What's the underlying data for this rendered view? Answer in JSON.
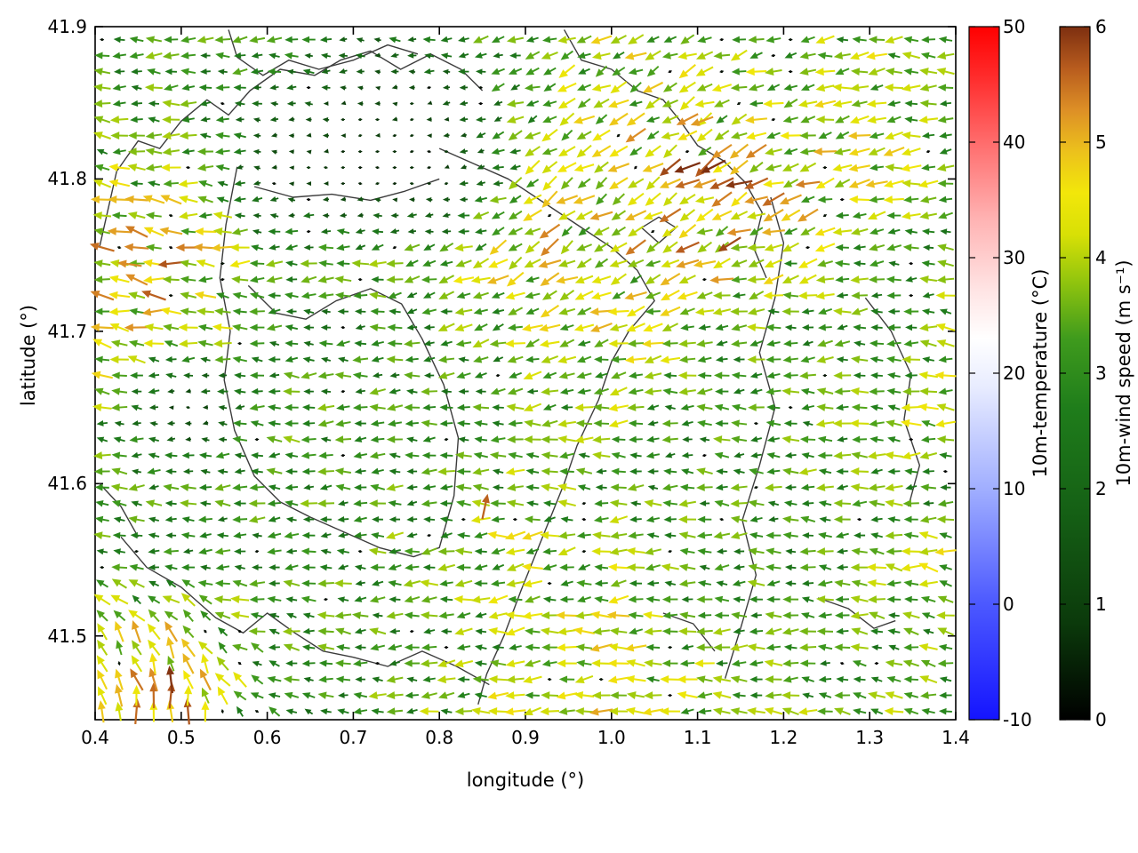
{
  "window": {
    "background": "#ffffff"
  },
  "chart_data": {
    "type": "quiver",
    "title": "",
    "xlabel": "longitude (°)",
    "ylabel": "latitude (°)",
    "xlim": [
      0.4,
      1.4
    ],
    "ylim": [
      41.445,
      41.9
    ],
    "xticks": [
      0.4,
      0.5,
      0.6,
      0.7,
      0.8,
      0.9,
      1.0,
      1.1,
      1.2,
      1.3,
      1.4
    ],
    "yticks": [
      41.5,
      41.6,
      41.7,
      41.8,
      41.9
    ],
    "grid": "off",
    "legend": "none",
    "field": {
      "comment": "10m wind vector field; speed (m/s) and direction (deg CCW from east, 180=westward) sampled on coarse grid, arrows drawn at fine spacing with jitter",
      "lon_nodes": [
        0.4,
        0.5,
        0.6,
        0.7,
        0.8,
        0.9,
        1.0,
        1.1,
        1.2,
        1.3,
        1.4
      ],
      "lat_nodes": [
        41.9,
        41.85,
        41.8,
        41.75,
        41.7,
        41.65,
        41.6,
        41.55,
        41.5,
        41.45
      ],
      "speed_grid": [
        [
          3.0,
          3.2,
          3.0,
          2.0,
          2.8,
          3.2,
          3.8,
          3.5,
          3.2,
          3.6,
          3.2
        ],
        [
          3.2,
          3.0,
          2.2,
          1.0,
          1.2,
          3.2,
          4.0,
          4.0,
          3.6,
          4.0,
          3.4
        ],
        [
          3.6,
          3.8,
          1.2,
          0.4,
          0.5,
          3.8,
          4.4,
          5.0,
          4.4,
          4.0,
          3.4
        ],
        [
          4.6,
          5.0,
          3.0,
          3.0,
          3.6,
          4.4,
          4.2,
          4.6,
          4.0,
          3.4,
          3.0
        ],
        [
          4.4,
          4.0,
          2.8,
          2.6,
          3.0,
          3.6,
          4.0,
          3.6,
          3.0,
          3.0,
          3.6
        ],
        [
          3.6,
          0.6,
          3.0,
          3.0,
          3.0,
          3.2,
          3.6,
          3.0,
          3.0,
          3.4,
          4.0
        ],
        [
          3.0,
          3.0,
          3.0,
          3.0,
          3.0,
          3.4,
          3.0,
          3.0,
          3.0,
          3.4,
          3.0
        ],
        [
          3.0,
          2.6,
          3.0,
          3.0,
          3.4,
          4.0,
          3.6,
          3.0,
          3.0,
          3.4,
          4.0
        ],
        [
          4.0,
          4.4,
          3.0,
          3.0,
          3.0,
          3.6,
          4.0,
          3.4,
          3.0,
          3.0,
          3.4
        ],
        [
          5.0,
          5.4,
          2.6,
          3.0,
          3.4,
          4.0,
          4.0,
          3.6,
          3.4,
          3.4,
          3.0
        ]
      ],
      "dir_grid": [
        [
          180,
          182,
          185,
          180,
          178,
          195,
          205,
          198,
          188,
          182,
          178
        ],
        [
          176,
          180,
          180,
          180,
          182,
          202,
          212,
          206,
          196,
          186,
          180
        ],
        [
          170,
          176,
          180,
          180,
          186,
          212,
          216,
          212,
          202,
          190,
          184
        ],
        [
          166,
          172,
          180,
          186,
          196,
          214,
          210,
          206,
          196,
          186,
          180
        ],
        [
          170,
          176,
          180,
          182,
          186,
          200,
          196,
          190,
          186,
          180,
          176
        ],
        [
          174,
          180,
          180,
          180,
          180,
          186,
          186,
          180,
          180,
          176,
          174
        ],
        [
          180,
          180,
          180,
          180,
          180,
          180,
          180,
          180,
          180,
          180,
          180
        ],
        [
          172,
          176,
          180,
          182,
          186,
          190,
          186,
          180,
          180,
          176,
          172
        ],
        [
          125,
          112,
          168,
          180,
          182,
          186,
          182,
          180,
          180,
          176,
          170
        ],
        [
          95,
          90,
          148,
          178,
          182,
          186,
          182,
          180,
          176,
          174,
          170
        ]
      ],
      "arrow_step_lon": 0.02,
      "arrow_step_lat": 0.0105,
      "seed": 42
    },
    "feature_arrows": [
      {
        "lon": 1.118,
        "lat": 41.808,
        "dir": 207,
        "speed": 6.0
      },
      {
        "lon": 1.137,
        "lat": 41.757,
        "dir": 212,
        "speed": 5.8
      },
      {
        "lon": 0.853,
        "lat": 41.585,
        "dir": 78,
        "speed": 5.6
      },
      {
        "lon": 0.44,
        "lat": 41.744,
        "dir": 172,
        "speed": 5.3
      },
      {
        "lon": 1.105,
        "lat": 41.838,
        "dir": 200,
        "speed": 5.2
      }
    ],
    "colorbars": [
      {
        "label": "10m-temperature (°C)",
        "min": -10,
        "max": 50,
        "ticks": [
          -10,
          0,
          10,
          20,
          30,
          40,
          50
        ],
        "stops": [
          {
            "t": 0.0,
            "c": "#1414ff"
          },
          {
            "t": 0.17,
            "c": "#4d5aff"
          },
          {
            "t": 0.33,
            "c": "#9fadff"
          },
          {
            "t": 0.48,
            "c": "#e8ecff"
          },
          {
            "t": 0.55,
            "c": "#ffffff"
          },
          {
            "t": 0.62,
            "c": "#ffe4e4"
          },
          {
            "t": 0.72,
            "c": "#ffb4b4"
          },
          {
            "t": 0.83,
            "c": "#ff6e6e"
          },
          {
            "t": 0.93,
            "c": "#ff2a2a"
          },
          {
            "t": 1.0,
            "c": "#ff0000"
          }
        ]
      },
      {
        "label": "10m-wind speed (m s⁻¹)",
        "min": 0,
        "max": 6,
        "ticks": [
          0,
          1,
          2,
          3,
          4,
          5,
          6
        ],
        "stops": [
          {
            "t": 0.0,
            "c": "#000000"
          },
          {
            "t": 0.14,
            "c": "#0b3a0b"
          },
          {
            "t": 0.3,
            "c": "#156015"
          },
          {
            "t": 0.45,
            "c": "#1f7d1b"
          },
          {
            "t": 0.55,
            "c": "#3f9b1d"
          },
          {
            "t": 0.63,
            "c": "#8fc40e"
          },
          {
            "t": 0.7,
            "c": "#d8e006"
          },
          {
            "t": 0.76,
            "c": "#f2e70a"
          },
          {
            "t": 0.82,
            "c": "#ecc11c"
          },
          {
            "t": 0.88,
            "c": "#dd8f26"
          },
          {
            "t": 0.94,
            "c": "#b85c1e"
          },
          {
            "t": 1.0,
            "c": "#7d2f10"
          }
        ]
      }
    ],
    "contours": [
      [
        [
          0.405,
          41.755
        ],
        [
          0.415,
          41.78
        ],
        [
          0.425,
          41.805
        ],
        [
          0.45,
          41.825
        ],
        [
          0.475,
          41.82
        ],
        [
          0.5,
          41.838
        ],
        [
          0.53,
          41.852
        ],
        [
          0.555,
          41.842
        ],
        [
          0.58,
          41.858
        ],
        [
          0.615,
          41.872
        ],
        [
          0.655,
          41.868
        ],
        [
          0.685,
          41.878
        ],
        [
          0.72,
          41.884
        ],
        [
          0.755,
          41.872
        ],
        [
          0.79,
          41.882
        ],
        [
          0.825,
          41.872
        ],
        [
          0.85,
          41.858
        ]
      ],
      [
        [
          0.555,
          41.898
        ],
        [
          0.565,
          41.88
        ],
        [
          0.595,
          41.868
        ],
        [
          0.625,
          41.878
        ],
        [
          0.66,
          41.872
        ],
        [
          0.7,
          41.878
        ],
        [
          0.74,
          41.888
        ],
        [
          0.775,
          41.882
        ]
      ],
      [
        [
          0.945,
          41.898
        ],
        [
          0.965,
          41.878
        ],
        [
          1.0,
          41.872
        ],
        [
          1.03,
          41.858
        ],
        [
          1.06,
          41.852
        ],
        [
          1.08,
          41.838
        ],
        [
          1.1,
          41.822
        ],
        [
          1.13,
          41.812
        ],
        [
          1.155,
          41.798
        ],
        [
          1.175,
          41.778
        ],
        [
          1.165,
          41.755
        ],
        [
          1.18,
          41.735
        ]
      ],
      [
        [
          0.8,
          41.82
        ],
        [
          0.84,
          41.81
        ],
        [
          0.88,
          41.8
        ],
        [
          0.92,
          41.785
        ],
        [
          0.96,
          41.77
        ],
        [
          1.0,
          41.755
        ],
        [
          1.03,
          41.74
        ],
        [
          1.05,
          41.72
        ],
        [
          1.02,
          41.7
        ],
        [
          1.0,
          41.68
        ],
        [
          0.985,
          41.655
        ],
        [
          0.96,
          41.625
        ],
        [
          0.945,
          41.6
        ],
        [
          0.92,
          41.565
        ],
        [
          0.895,
          41.53
        ],
        [
          0.875,
          41.5
        ],
        [
          0.855,
          41.475
        ],
        [
          0.845,
          41.455
        ]
      ],
      [
        [
          0.565,
          41.808
        ],
        [
          0.552,
          41.77
        ],
        [
          0.545,
          41.735
        ],
        [
          0.557,
          41.7
        ],
        [
          0.55,
          41.668
        ],
        [
          0.562,
          41.635
        ],
        [
          0.585,
          41.605
        ],
        [
          0.615,
          41.588
        ],
        [
          0.65,
          41.578
        ],
        [
          0.69,
          41.568
        ],
        [
          0.73,
          41.558
        ],
        [
          0.77,
          41.552
        ],
        [
          0.8,
          41.558
        ],
        [
          0.817,
          41.592
        ],
        [
          0.822,
          41.63
        ],
        [
          0.805,
          41.665
        ],
        [
          0.78,
          41.695
        ],
        [
          0.756,
          41.718
        ],
        [
          0.72,
          41.728
        ],
        [
          0.68,
          41.72
        ],
        [
          0.645,
          41.708
        ],
        [
          0.61,
          41.712
        ],
        [
          0.578,
          41.73
        ]
      ],
      [
        [
          0.43,
          41.565
        ],
        [
          0.46,
          41.545
        ],
        [
          0.5,
          41.532
        ],
        [
          0.54,
          41.512
        ],
        [
          0.572,
          41.502
        ],
        [
          0.6,
          41.515
        ],
        [
          0.632,
          41.502
        ],
        [
          0.665,
          41.49
        ],
        [
          0.7,
          41.486
        ],
        [
          0.74,
          41.48
        ],
        [
          0.78,
          41.49
        ],
        [
          0.82,
          41.48
        ],
        [
          0.858,
          41.468
        ]
      ],
      [
        [
          1.185,
          41.788
        ],
        [
          1.2,
          41.758
        ],
        [
          1.19,
          41.722
        ],
        [
          1.172,
          41.686
        ],
        [
          1.19,
          41.65
        ],
        [
          1.172,
          41.612
        ],
        [
          1.152,
          41.576
        ],
        [
          1.168,
          41.54
        ],
        [
          1.15,
          41.505
        ],
        [
          1.132,
          41.472
        ]
      ],
      [
        [
          1.295,
          41.722
        ],
        [
          1.325,
          41.7
        ],
        [
          1.348,
          41.672
        ],
        [
          1.34,
          41.642
        ],
        [
          1.358,
          41.612
        ],
        [
          1.345,
          41.585
        ]
      ],
      [
        [
          1.24,
          41.525
        ],
        [
          1.275,
          41.518
        ],
        [
          1.305,
          41.505
        ],
        [
          1.33,
          41.51
        ]
      ],
      [
        [
          1.035,
          41.768
        ],
        [
          1.055,
          41.775
        ],
        [
          1.075,
          41.768
        ],
        [
          1.055,
          41.758
        ],
        [
          1.035,
          41.768
        ]
      ],
      [
        [
          0.405,
          41.6
        ],
        [
          0.43,
          41.585
        ],
        [
          0.45,
          41.565
        ]
      ],
      [
        [
          0.585,
          41.795
        ],
        [
          0.63,
          41.788
        ],
        [
          0.675,
          41.79
        ],
        [
          0.72,
          41.786
        ],
        [
          0.76,
          41.792
        ],
        [
          0.8,
          41.8
        ]
      ],
      [
        [
          1.06,
          41.515
        ],
        [
          1.095,
          41.508
        ],
        [
          1.12,
          41.49
        ]
      ]
    ]
  }
}
